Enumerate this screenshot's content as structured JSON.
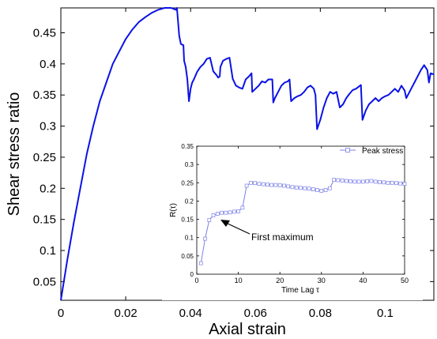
{
  "chart_data": [
    {
      "type": "line",
      "xlabel": "Axial strain",
      "ylabel": "Shear stress ratio",
      "xlim": [
        0,
        0.115
      ],
      "ylim": [
        0.02,
        0.49
      ],
      "x_ticks": [
        0,
        0.02,
        0.04,
        0.06,
        0.08,
        0.1
      ],
      "x_tick_labels": [
        "0",
        "0.02",
        "0.04",
        "0.06",
        "0.08",
        "0.1"
      ],
      "y_ticks": [
        0.05,
        0.1,
        0.15,
        0.2,
        0.25,
        0.3,
        0.35,
        0.4,
        0.45
      ],
      "y_tick_labels": [
        "0.05",
        "0.1",
        "0.15",
        "0.2",
        "0.25",
        "0.3",
        "0.35",
        "0.4",
        "0.45"
      ],
      "grid": false,
      "line_color": "#0a12e6",
      "series": [
        {
          "x": [
            0,
            0.002,
            0.004,
            0.006,
            0.008,
            0.01,
            0.012,
            0.014,
            0.016,
            0.018,
            0.02,
            0.022,
            0.024,
            0.026,
            0.028,
            0.03,
            0.032,
            0.034,
            0.0355,
            0.0358,
            0.0365,
            0.037,
            0.0378,
            0.038,
            0.0385,
            0.039,
            0.0395,
            0.04,
            0.0405,
            0.041,
            0.042,
            0.043,
            0.044,
            0.045,
            0.046,
            0.047,
            0.048,
            0.0485,
            0.049,
            0.0492,
            0.05,
            0.051,
            0.052,
            0.053,
            0.054,
            0.055,
            0.056,
            0.057,
            0.058,
            0.0588,
            0.059,
            0.06,
            0.061,
            0.062,
            0.063,
            0.064,
            0.0652,
            0.0655,
            0.066,
            0.067,
            0.068,
            0.069,
            0.07,
            0.0705,
            0.071,
            0.072,
            0.073,
            0.074,
            0.075,
            0.076,
            0.077,
            0.078,
            0.0785,
            0.079,
            0.08,
            0.081,
            0.082,
            0.083,
            0.084,
            0.085,
            0.086,
            0.087,
            0.088,
            0.089,
            0.09,
            0.091,
            0.0925,
            0.093,
            0.094,
            0.095,
            0.096,
            0.097,
            0.098,
            0.099,
            0.1,
            0.101,
            0.102,
            0.103,
            0.104,
            0.105,
            0.106,
            0.1065,
            0.107,
            0.108,
            0.109,
            0.11,
            0.111,
            0.112,
            0.113,
            0.1135,
            0.114,
            0.115
          ],
          "values": [
            0.02,
            0.085,
            0.145,
            0.2,
            0.255,
            0.3,
            0.34,
            0.37,
            0.4,
            0.42,
            0.44,
            0.455,
            0.467,
            0.475,
            0.482,
            0.487,
            0.49,
            0.49,
            0.487,
            0.49,
            0.445,
            0.432,
            0.43,
            0.405,
            0.395,
            0.375,
            0.34,
            0.36,
            0.37,
            0.375,
            0.387,
            0.395,
            0.4,
            0.408,
            0.41,
            0.388,
            0.382,
            0.378,
            0.38,
            0.395,
            0.405,
            0.408,
            0.41,
            0.376,
            0.365,
            0.362,
            0.36,
            0.375,
            0.38,
            0.385,
            0.355,
            0.36,
            0.365,
            0.372,
            0.37,
            0.375,
            0.375,
            0.338,
            0.345,
            0.355,
            0.365,
            0.37,
            0.372,
            0.375,
            0.34,
            0.345,
            0.348,
            0.35,
            0.355,
            0.362,
            0.365,
            0.36,
            0.35,
            0.295,
            0.31,
            0.33,
            0.345,
            0.355,
            0.352,
            0.355,
            0.33,
            0.335,
            0.345,
            0.352,
            0.358,
            0.36,
            0.366,
            0.31,
            0.325,
            0.335,
            0.34,
            0.345,
            0.34,
            0.345,
            0.348,
            0.35,
            0.355,
            0.36,
            0.355,
            0.365,
            0.357,
            0.345,
            0.35,
            0.36,
            0.37,
            0.38,
            0.39,
            0.398,
            0.39,
            0.37,
            0.385,
            0.383
          ]
        }
      ]
    },
    {
      "type": "line",
      "xlabel": "Time Lag τ",
      "ylabel": "R(τ)",
      "xlim": [
        0,
        50
      ],
      "ylim": [
        0,
        0.35
      ],
      "x_ticks": [
        0,
        10,
        20,
        30,
        40,
        50
      ],
      "x_tick_labels": [
        "0",
        "10",
        "20",
        "30",
        "40",
        "50"
      ],
      "y_ticks": [
        0,
        0.05,
        0.1,
        0.15,
        0.2,
        0.25,
        0.3,
        0.35
      ],
      "y_tick_labels": [
        "0",
        "0.05",
        "0.1",
        "0.15",
        "0.2",
        "0.25",
        "0.3",
        "0.35"
      ],
      "grid": false,
      "legend_position": "top-right",
      "marker_color": "#7b80e6",
      "annotation": {
        "text": "First maximum",
        "points_to": [
          6,
          0.165
        ]
      },
      "series": [
        {
          "name": "Peak stress",
          "marker": "square",
          "x": [
            1,
            2,
            3,
            4,
            5,
            6,
            7,
            8,
            9,
            10,
            11,
            12,
            13,
            14,
            15,
            16,
            17,
            18,
            19,
            20,
            21,
            22,
            23,
            24,
            25,
            26,
            27,
            28,
            29,
            30,
            31,
            32,
            33,
            34,
            35,
            36,
            37,
            38,
            39,
            40,
            41,
            42,
            43,
            44,
            45,
            46,
            47,
            48,
            49,
            50
          ],
          "values": [
            0.03,
            0.097,
            0.148,
            0.161,
            0.165,
            0.168,
            0.168,
            0.169,
            0.171,
            0.172,
            0.182,
            0.242,
            0.25,
            0.249,
            0.247,
            0.246,
            0.245,
            0.244,
            0.244,
            0.243,
            0.242,
            0.24,
            0.238,
            0.237,
            0.236,
            0.235,
            0.234,
            0.232,
            0.23,
            0.228,
            0.23,
            0.235,
            0.258,
            0.257,
            0.256,
            0.255,
            0.254,
            0.253,
            0.253,
            0.253,
            0.254,
            0.255,
            0.253,
            0.252,
            0.251,
            0.25,
            0.25,
            0.249,
            0.248,
            0.247
          ]
        }
      ]
    }
  ]
}
